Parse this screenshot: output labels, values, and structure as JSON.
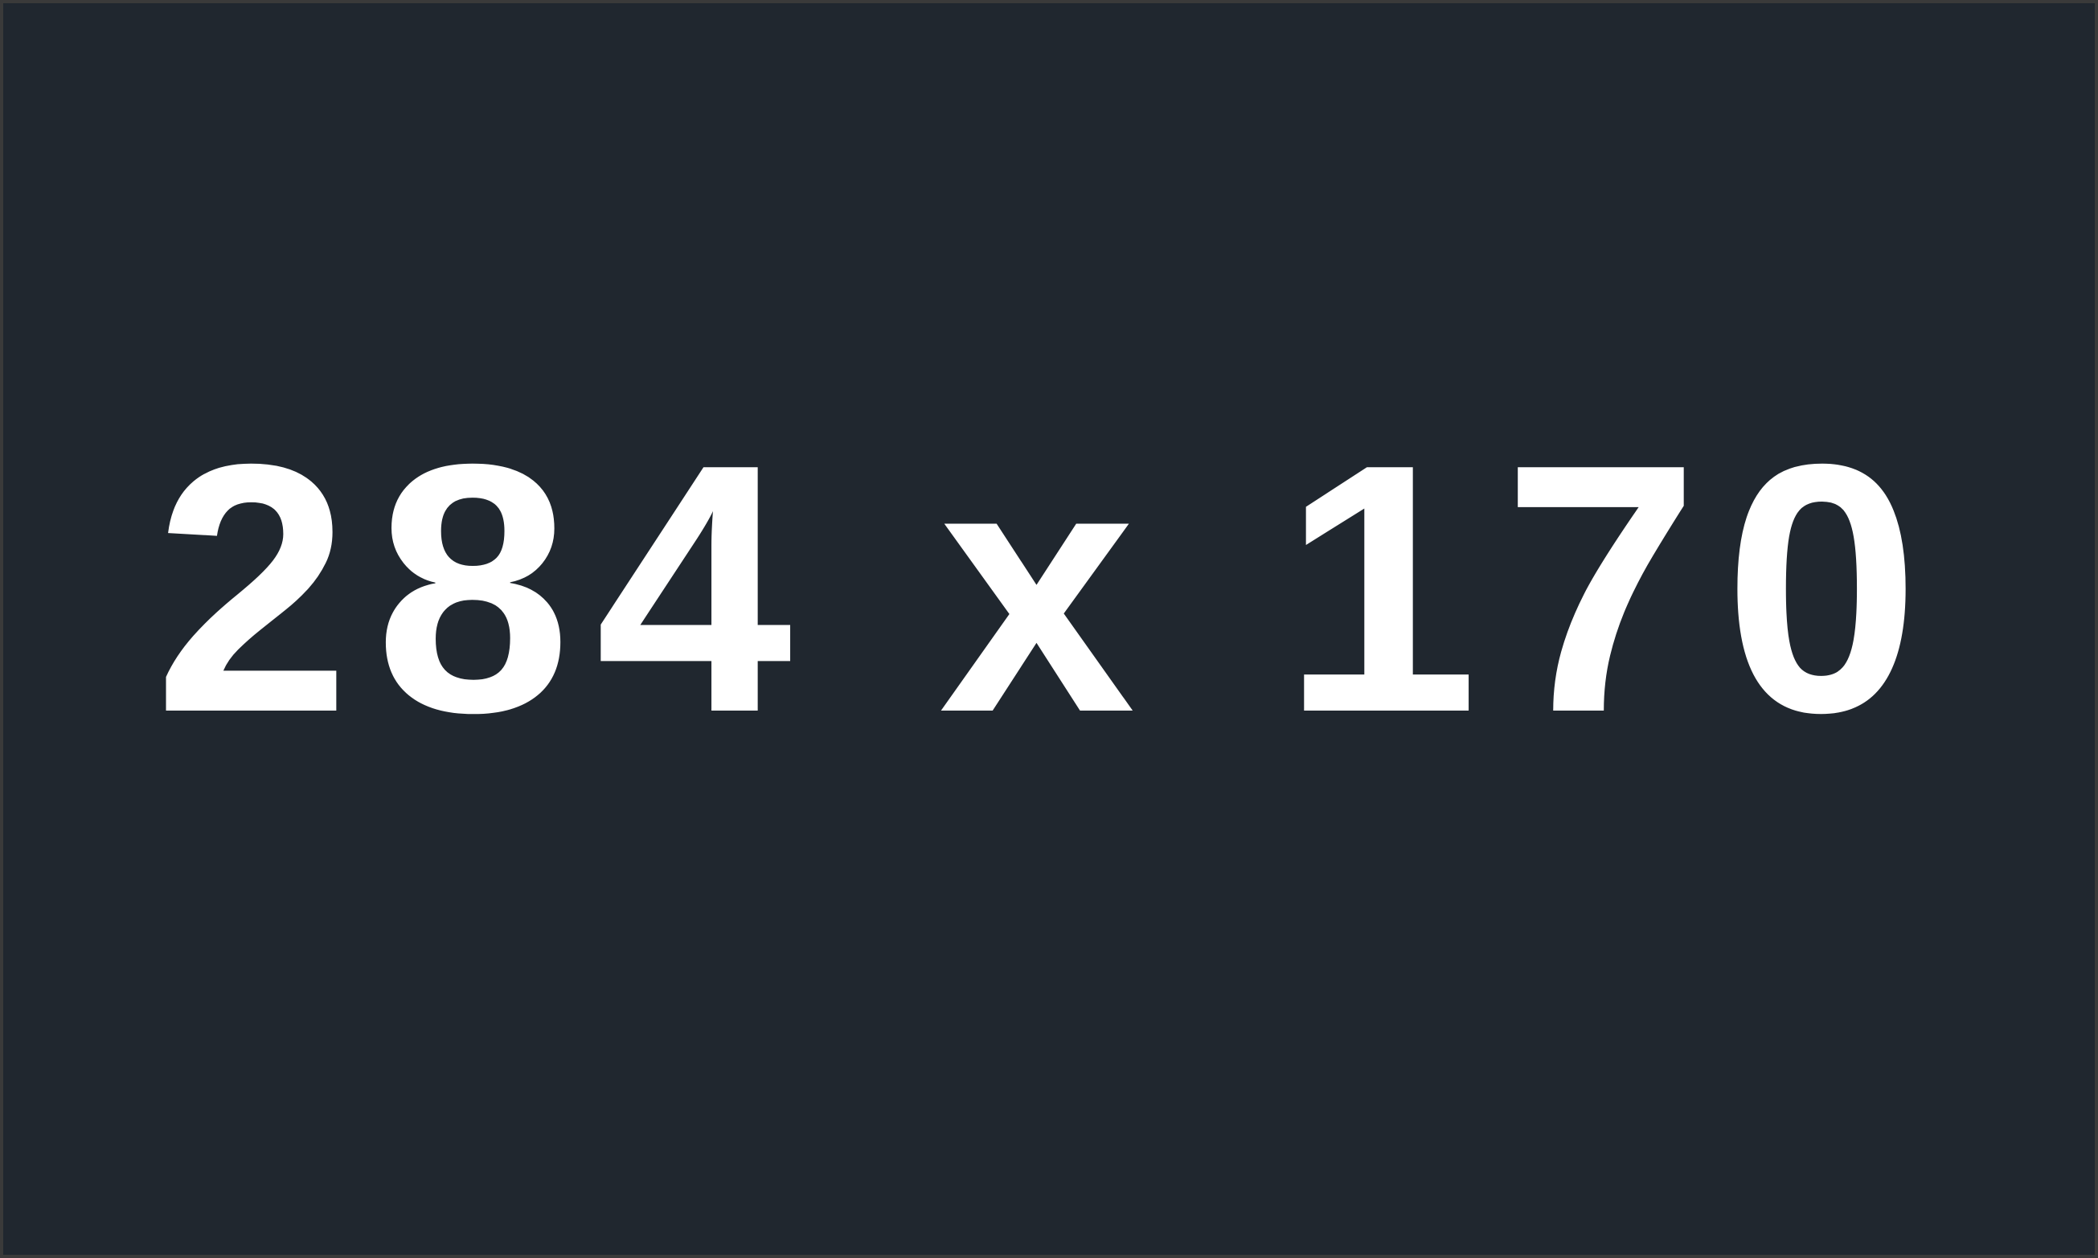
{
  "placeholder": {
    "text": "284 x 170",
    "background_color": "#20272f",
    "border_color": "#3a3a3a",
    "text_color": "#ffffff"
  }
}
